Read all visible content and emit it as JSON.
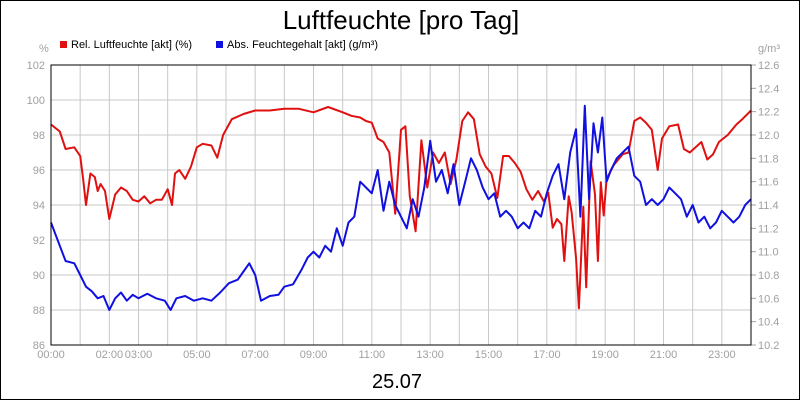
{
  "chart_data": {
    "type": "line",
    "title": "Luftfeuchte [pro Tag]",
    "date_label": "25.07",
    "left_unit": "%",
    "right_unit": "g/m³",
    "left_ylim": [
      86,
      102
    ],
    "right_ylim": [
      10.2,
      12.6
    ],
    "x_range_hours": [
      0,
      24
    ],
    "left_ticks": [
      "86",
      "88",
      "90",
      "92",
      "94",
      "96",
      "98",
      "100",
      "102"
    ],
    "right_ticks": [
      "10.2",
      "10.4",
      "10.6",
      "10.8",
      "11.0",
      "11.2",
      "11.4",
      "11.6",
      "11.8",
      "12.0",
      "12.2",
      "12.4",
      "12.6"
    ],
    "x_ticks": [
      {
        "h": 0,
        "label": "00:00"
      },
      {
        "h": 2,
        "label": "02:00"
      },
      {
        "h": 3,
        "label": "03:00"
      },
      {
        "h": 5,
        "label": "05:00"
      },
      {
        "h": 7,
        "label": "07:00"
      },
      {
        "h": 9,
        "label": "09:00"
      },
      {
        "h": 11,
        "label": "11:00"
      },
      {
        "h": 13,
        "label": "13:00"
      },
      {
        "h": 15,
        "label": "15:00"
      },
      {
        "h": 17,
        "label": "17:00"
      },
      {
        "h": 19,
        "label": "19:00"
      },
      {
        "h": 21,
        "label": "21:00"
      },
      {
        "h": 23,
        "label": "23:00"
      }
    ],
    "grid": true,
    "legend_position": "top-left",
    "series": [
      {
        "name": "Rel. Luftfeuchte [akt] (%)",
        "axis": "left",
        "color": "#e01010",
        "points": [
          [
            0,
            98.6
          ],
          [
            0.3,
            98.2
          ],
          [
            0.5,
            97.2
          ],
          [
            0.8,
            97.3
          ],
          [
            1.0,
            96.8
          ],
          [
            1.1,
            95.5
          ],
          [
            1.2,
            94.0
          ],
          [
            1.35,
            95.8
          ],
          [
            1.5,
            95.6
          ],
          [
            1.6,
            94.8
          ],
          [
            1.7,
            95.2
          ],
          [
            1.85,
            94.8
          ],
          [
            2.0,
            93.2
          ],
          [
            2.2,
            94.6
          ],
          [
            2.4,
            95.0
          ],
          [
            2.6,
            94.8
          ],
          [
            2.8,
            94.3
          ],
          [
            3.0,
            94.2
          ],
          [
            3.2,
            94.5
          ],
          [
            3.4,
            94.1
          ],
          [
            3.6,
            94.3
          ],
          [
            3.8,
            94.3
          ],
          [
            4.0,
            94.9
          ],
          [
            4.15,
            94.0
          ],
          [
            4.25,
            95.8
          ],
          [
            4.4,
            96.0
          ],
          [
            4.6,
            95.5
          ],
          [
            4.8,
            96.2
          ],
          [
            5.0,
            97.3
          ],
          [
            5.2,
            97.5
          ],
          [
            5.5,
            97.4
          ],
          [
            5.7,
            96.7
          ],
          [
            5.9,
            98.0
          ],
          [
            6.2,
            98.9
          ],
          [
            6.6,
            99.2
          ],
          [
            7.0,
            99.4
          ],
          [
            7.5,
            99.4
          ],
          [
            8.0,
            99.5
          ],
          [
            8.5,
            99.5
          ],
          [
            9.0,
            99.3
          ],
          [
            9.5,
            99.6
          ],
          [
            10.0,
            99.3
          ],
          [
            10.3,
            99.1
          ],
          [
            10.6,
            99.0
          ],
          [
            10.8,
            98.8
          ],
          [
            11.0,
            98.7
          ],
          [
            11.2,
            97.8
          ],
          [
            11.4,
            97.6
          ],
          [
            11.6,
            97.0
          ],
          [
            11.8,
            93.5
          ],
          [
            12.0,
            98.3
          ],
          [
            12.15,
            98.5
          ],
          [
            12.3,
            94.5
          ],
          [
            12.5,
            92.5
          ],
          [
            12.7,
            97.7
          ],
          [
            12.9,
            95.0
          ],
          [
            13.1,
            97.0
          ],
          [
            13.3,
            96.4
          ],
          [
            13.5,
            97.0
          ],
          [
            13.7,
            95.2
          ],
          [
            13.9,
            96.6
          ],
          [
            14.1,
            98.8
          ],
          [
            14.3,
            99.3
          ],
          [
            14.5,
            98.9
          ],
          [
            14.7,
            96.9
          ],
          [
            14.9,
            96.2
          ],
          [
            15.1,
            95.8
          ],
          [
            15.3,
            94.4
          ],
          [
            15.5,
            96.8
          ],
          [
            15.7,
            96.8
          ],
          [
            15.9,
            96.4
          ],
          [
            16.1,
            95.9
          ],
          [
            16.3,
            94.9
          ],
          [
            16.5,
            94.3
          ],
          [
            16.7,
            94.8
          ],
          [
            16.9,
            94.2
          ],
          [
            17.05,
            94.7
          ],
          [
            17.2,
            92.7
          ],
          [
            17.35,
            93.2
          ],
          [
            17.5,
            92.9
          ],
          [
            17.6,
            90.8
          ],
          [
            17.75,
            94.5
          ],
          [
            17.85,
            93.6
          ],
          [
            18.0,
            91.0
          ],
          [
            18.1,
            88.1
          ],
          [
            18.25,
            93.9
          ],
          [
            18.35,
            89.3
          ],
          [
            18.5,
            96.5
          ],
          [
            18.65,
            94.6
          ],
          [
            18.75,
            90.8
          ],
          [
            18.85,
            95.3
          ],
          [
            18.95,
            93.4
          ],
          [
            19.05,
            95.5
          ],
          [
            19.3,
            96.3
          ],
          [
            19.6,
            96.9
          ],
          [
            19.8,
            97.0
          ],
          [
            20.0,
            98.8
          ],
          [
            20.2,
            99.0
          ],
          [
            20.4,
            98.7
          ],
          [
            20.6,
            98.3
          ],
          [
            20.8,
            96.0
          ],
          [
            20.95,
            97.8
          ],
          [
            21.2,
            98.5
          ],
          [
            21.5,
            98.6
          ],
          [
            21.7,
            97.2
          ],
          [
            21.9,
            97.0
          ],
          [
            22.1,
            97.3
          ],
          [
            22.3,
            97.6
          ],
          [
            22.5,
            96.6
          ],
          [
            22.7,
            96.9
          ],
          [
            22.9,
            97.6
          ],
          [
            23.2,
            98.0
          ],
          [
            23.5,
            98.6
          ],
          [
            23.7,
            98.9
          ],
          [
            24.0,
            99.4
          ]
        ]
      },
      {
        "name": "Abs. Feuchtegehalt [akt] (g/m³)",
        "axis": "right",
        "color": "#1010e0",
        "points": [
          [
            0,
            11.25
          ],
          [
            0.3,
            11.05
          ],
          [
            0.5,
            10.92
          ],
          [
            0.8,
            10.9
          ],
          [
            1.0,
            10.8
          ],
          [
            1.2,
            10.7
          ],
          [
            1.4,
            10.66
          ],
          [
            1.6,
            10.6
          ],
          [
            1.8,
            10.62
          ],
          [
            2.0,
            10.5
          ],
          [
            2.2,
            10.6
          ],
          [
            2.4,
            10.65
          ],
          [
            2.6,
            10.58
          ],
          [
            2.8,
            10.63
          ],
          [
            3.0,
            10.6
          ],
          [
            3.3,
            10.64
          ],
          [
            3.6,
            10.6
          ],
          [
            3.9,
            10.58
          ],
          [
            4.1,
            10.5
          ],
          [
            4.3,
            10.6
          ],
          [
            4.6,
            10.62
          ],
          [
            4.9,
            10.58
          ],
          [
            5.2,
            10.6
          ],
          [
            5.5,
            10.58
          ],
          [
            5.8,
            10.65
          ],
          [
            6.1,
            10.73
          ],
          [
            6.4,
            10.76
          ],
          [
            6.6,
            10.83
          ],
          [
            6.8,
            10.9
          ],
          [
            7.0,
            10.8
          ],
          [
            7.2,
            10.58
          ],
          [
            7.5,
            10.62
          ],
          [
            7.8,
            10.63
          ],
          [
            8.0,
            10.7
          ],
          [
            8.3,
            10.72
          ],
          [
            8.6,
            10.85
          ],
          [
            8.8,
            10.95
          ],
          [
            9.0,
            11.0
          ],
          [
            9.2,
            10.95
          ],
          [
            9.4,
            11.05
          ],
          [
            9.6,
            11.0
          ],
          [
            9.8,
            11.2
          ],
          [
            10.0,
            11.05
          ],
          [
            10.2,
            11.25
          ],
          [
            10.4,
            11.3
          ],
          [
            10.6,
            11.6
          ],
          [
            10.8,
            11.55
          ],
          [
            11.0,
            11.5
          ],
          [
            11.2,
            11.7
          ],
          [
            11.4,
            11.35
          ],
          [
            11.6,
            11.6
          ],
          [
            11.8,
            11.4
          ],
          [
            12.0,
            11.3
          ],
          [
            12.2,
            11.2
          ],
          [
            12.4,
            11.45
          ],
          [
            12.6,
            11.3
          ],
          [
            12.8,
            11.55
          ],
          [
            13.0,
            11.95
          ],
          [
            13.2,
            11.6
          ],
          [
            13.4,
            11.7
          ],
          [
            13.6,
            11.5
          ],
          [
            13.8,
            11.75
          ],
          [
            14.0,
            11.4
          ],
          [
            14.2,
            11.6
          ],
          [
            14.4,
            11.8
          ],
          [
            14.6,
            11.7
          ],
          [
            14.8,
            11.55
          ],
          [
            15.0,
            11.45
          ],
          [
            15.2,
            11.5
          ],
          [
            15.4,
            11.3
          ],
          [
            15.6,
            11.35
          ],
          [
            15.8,
            11.3
          ],
          [
            16.0,
            11.2
          ],
          [
            16.2,
            11.25
          ],
          [
            16.4,
            11.2
          ],
          [
            16.6,
            11.35
          ],
          [
            16.8,
            11.3
          ],
          [
            17.0,
            11.5
          ],
          [
            17.2,
            11.65
          ],
          [
            17.4,
            11.75
          ],
          [
            17.6,
            11.45
          ],
          [
            17.8,
            11.85
          ],
          [
            18.0,
            12.05
          ],
          [
            18.15,
            11.3
          ],
          [
            18.3,
            12.25
          ],
          [
            18.45,
            11.45
          ],
          [
            18.6,
            12.1
          ],
          [
            18.75,
            11.85
          ],
          [
            18.9,
            12.15
          ],
          [
            19.05,
            11.6
          ],
          [
            19.2,
            11.7
          ],
          [
            19.4,
            11.8
          ],
          [
            19.6,
            11.85
          ],
          [
            19.8,
            11.9
          ],
          [
            20.0,
            11.65
          ],
          [
            20.2,
            11.6
          ],
          [
            20.4,
            11.4
          ],
          [
            20.6,
            11.45
          ],
          [
            20.8,
            11.4
          ],
          [
            21.0,
            11.45
          ],
          [
            21.2,
            11.55
          ],
          [
            21.4,
            11.5
          ],
          [
            21.6,
            11.45
          ],
          [
            21.8,
            11.3
          ],
          [
            22.0,
            11.4
          ],
          [
            22.2,
            11.25
          ],
          [
            22.4,
            11.3
          ],
          [
            22.6,
            11.2
          ],
          [
            22.8,
            11.25
          ],
          [
            23.0,
            11.35
          ],
          [
            23.2,
            11.3
          ],
          [
            23.4,
            11.25
          ],
          [
            23.6,
            11.3
          ],
          [
            23.8,
            11.4
          ],
          [
            24.0,
            11.45
          ]
        ]
      }
    ]
  }
}
